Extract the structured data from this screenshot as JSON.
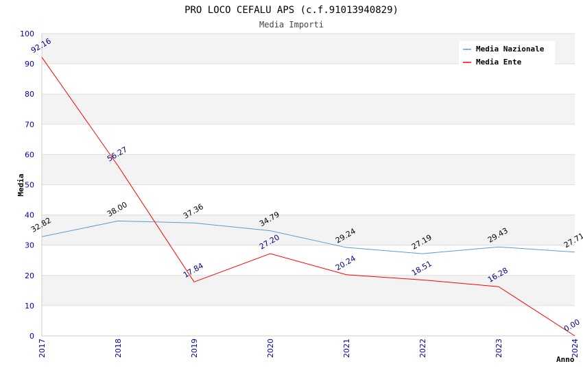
{
  "chart_data": {
    "type": "line",
    "title": "PRO LOCO CEFALU APS (c.f.91013940829)",
    "subtitle": "Media Importi",
    "xlabel": "Anno",
    "ylabel": "Media",
    "ylim": [
      0,
      100
    ],
    "yticks": [
      0,
      10,
      20,
      30,
      40,
      50,
      60,
      70,
      80,
      90,
      100
    ],
    "categories": [
      "2017",
      "2018",
      "2019",
      "2020",
      "2021",
      "2022",
      "2023",
      "2024"
    ],
    "grid": true,
    "legend_position": "top-right",
    "series": [
      {
        "name": "Media Nazionale",
        "color": "#5b9bd5",
        "label_color": "#000000",
        "values": [
          32.82,
          38.0,
          37.36,
          34.79,
          29.24,
          27.19,
          29.43,
          27.71
        ],
        "labels": [
          "32.82",
          "38.00",
          "37.36",
          "34.79",
          "29.24",
          "27.19",
          "29.43",
          "27.71"
        ]
      },
      {
        "name": "Media Ente",
        "color": "#ff0000",
        "label_color": "#000080",
        "values": [
          92.16,
          56.27,
          17.84,
          27.2,
          20.24,
          18.51,
          16.28,
          0.0
        ],
        "labels": [
          "92.16",
          "56.27",
          "17.84",
          "27.20",
          "20.24",
          "18.51",
          "16.28",
          "0.00"
        ]
      }
    ]
  }
}
